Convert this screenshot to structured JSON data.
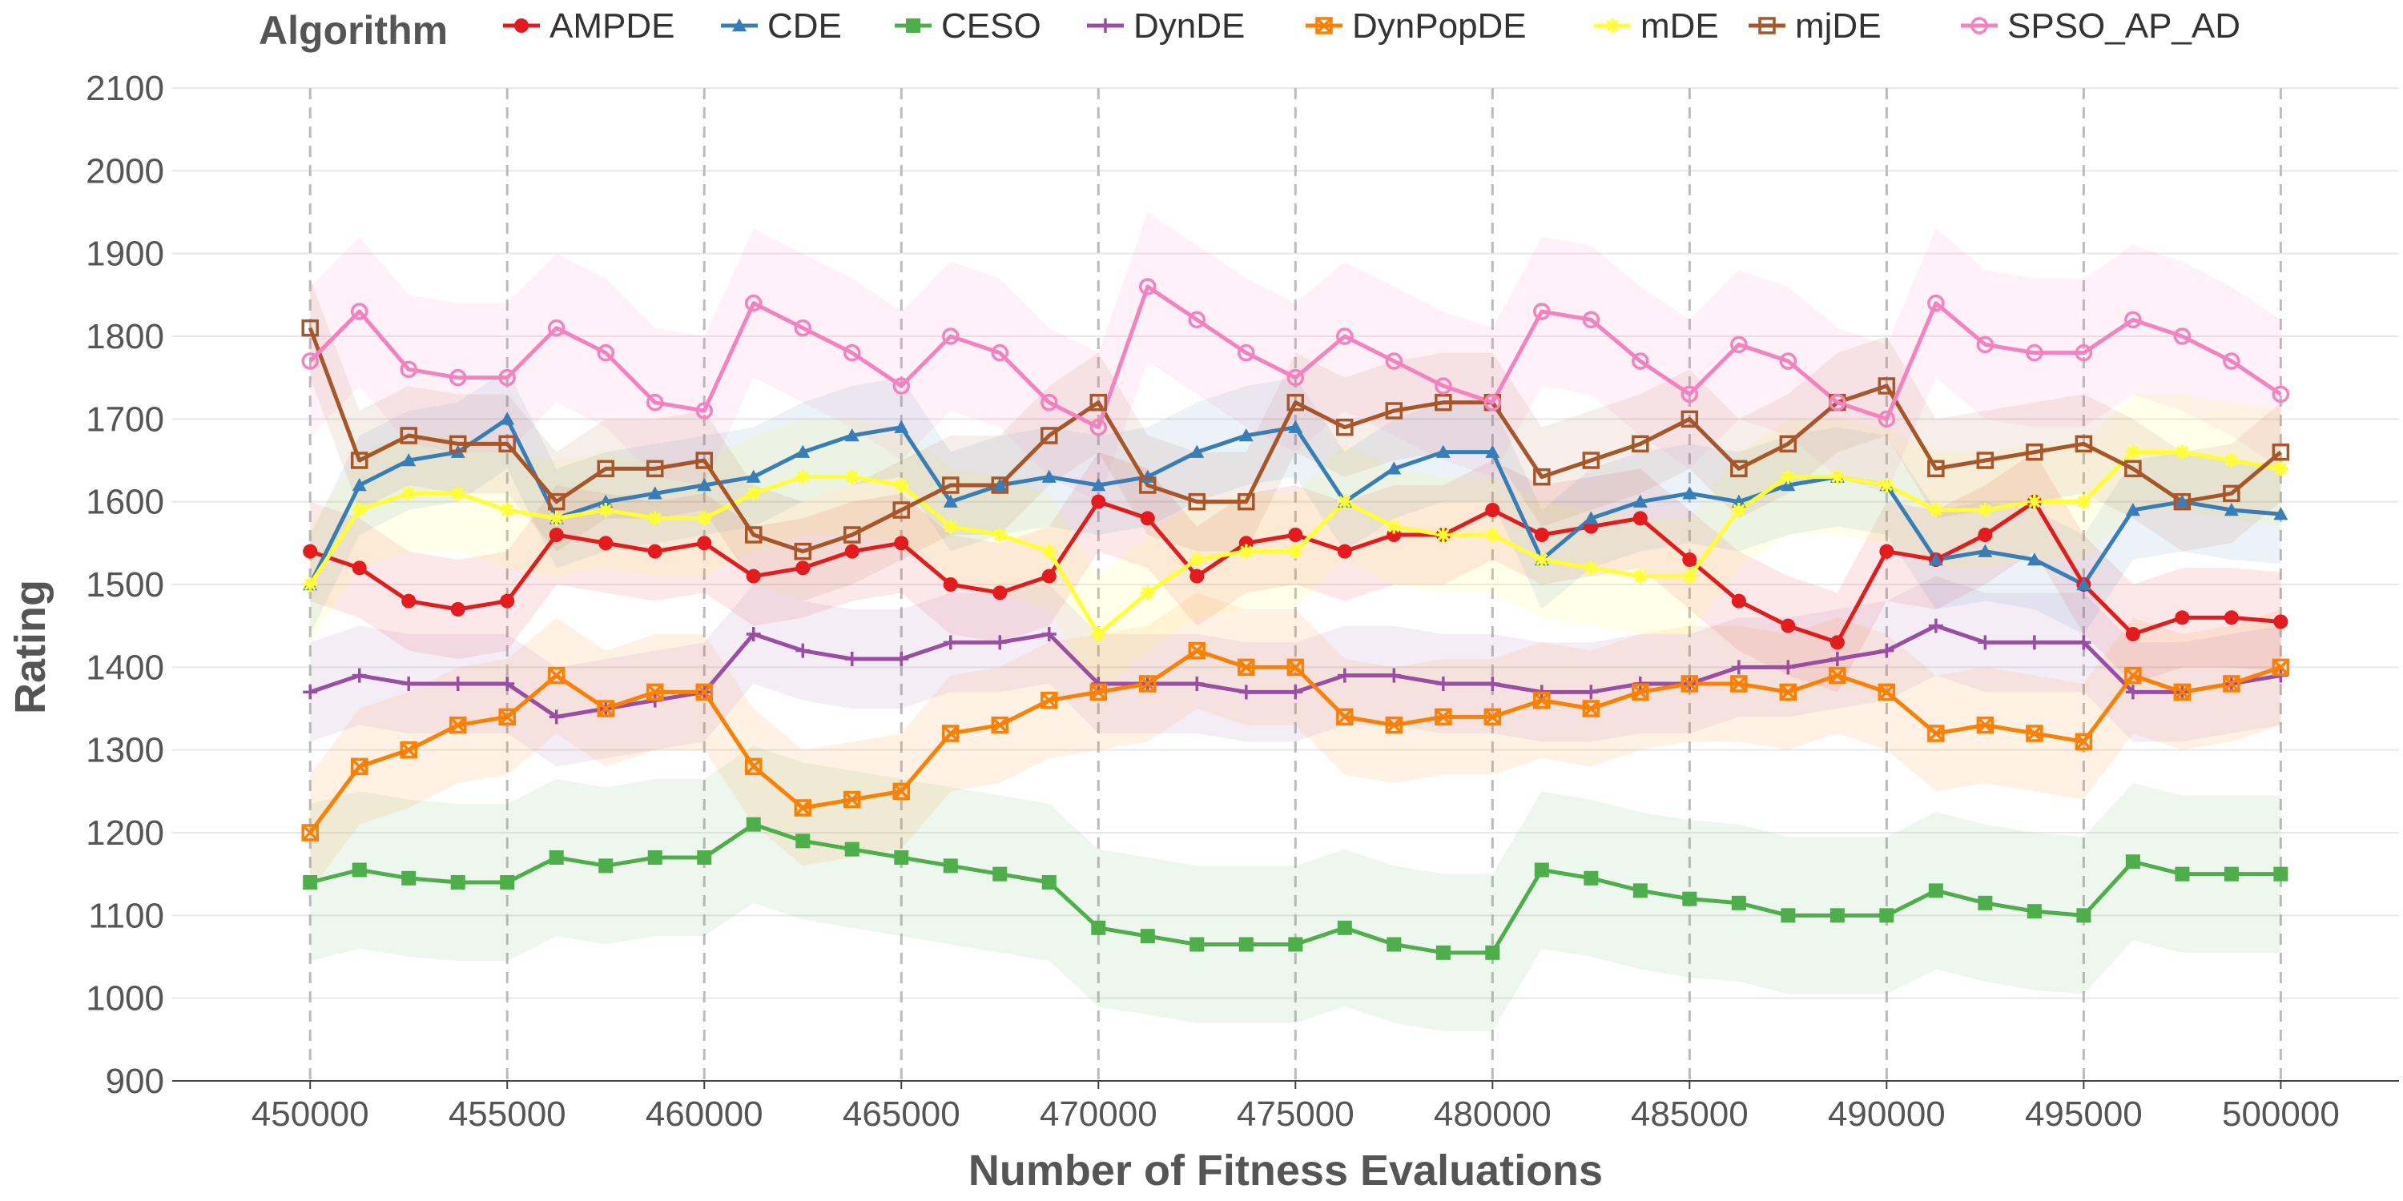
{
  "chart_data": {
    "type": "line",
    "title": "",
    "xlabel": "Number of Fitness Evaluations",
    "ylabel": "Rating",
    "xlim": [
      446500,
      503000
    ],
    "ylim": [
      900,
      2100
    ],
    "x_ticks": [
      450000,
      455000,
      460000,
      465000,
      470000,
      475000,
      480000,
      485000,
      490000,
      495000,
      500000
    ],
    "y_ticks": [
      900,
      1000,
      1100,
      1200,
      1300,
      1400,
      1500,
      1600,
      1700,
      1800,
      1900,
      2000,
      2100
    ],
    "grid": true,
    "change_points": [
      450000,
      455000,
      460000,
      465000,
      470000,
      475000,
      480000,
      485000,
      490000,
      495000,
      500000
    ],
    "legend": {
      "title": "Algorithm",
      "position": "top"
    },
    "x": [
      450000,
      451250,
      452500,
      453750,
      455000,
      456250,
      457500,
      458750,
      460000,
      461250,
      462500,
      463750,
      465000,
      466250,
      467500,
      468750,
      470000,
      471250,
      472500,
      473750,
      475000,
      476250,
      477500,
      478750,
      480000,
      481250,
      482500,
      483750,
      485000,
      486250,
      487500,
      488750,
      490000,
      491250,
      492500,
      493750,
      495000,
      496250,
      497500,
      498750,
      500000
    ],
    "series": [
      {
        "name": "AMPDE",
        "color": "#e41a1c",
        "marker": "circle",
        "band": 60,
        "values": [
          1540,
          1520,
          1480,
          1470,
          1480,
          1560,
          1550,
          1540,
          1550,
          1510,
          1520,
          1540,
          1550,
          1500,
          1490,
          1510,
          1600,
          1580,
          1510,
          1550,
          1560,
          1540,
          1560,
          1560,
          1590,
          1560,
          1570,
          1580,
          1530,
          1480,
          1450,
          1430,
          1540,
          1530,
          1560,
          1600,
          1500,
          1440,
          1460,
          1460,
          1455
        ]
      },
      {
        "name": "CDE",
        "color": "#377eb8",
        "marker": "triangle",
        "band": 60,
        "values": [
          1500,
          1620,
          1650,
          1660,
          1700,
          1580,
          1600,
          1610,
          1620,
          1630,
          1660,
          1680,
          1690,
          1600,
          1620,
          1630,
          1620,
          1630,
          1660,
          1680,
          1690,
          1600,
          1640,
          1660,
          1660,
          1530,
          1580,
          1600,
          1610,
          1600,
          1620,
          1630,
          1620,
          1530,
          1540,
          1530,
          1500,
          1590,
          1600,
          1590,
          1585
        ]
      },
      {
        "name": "CESO",
        "color": "#4daf4a",
        "marker": "square",
        "band": 95,
        "values": [
          1140,
          1155,
          1145,
          1140,
          1140,
          1170,
          1160,
          1170,
          1170,
          1210,
          1190,
          1180,
          1170,
          1160,
          1150,
          1140,
          1085,
          1075,
          1065,
          1065,
          1065,
          1085,
          1065,
          1055,
          1055,
          1155,
          1145,
          1130,
          1120,
          1115,
          1100,
          1100,
          1100,
          1130,
          1115,
          1105,
          1100,
          1165,
          1150,
          1150,
          1150
        ]
      },
      {
        "name": "DynDE",
        "color": "#984ea3",
        "marker": "plus",
        "band": 60,
        "values": [
          1370,
          1390,
          1380,
          1380,
          1380,
          1340,
          1350,
          1360,
          1370,
          1440,
          1420,
          1410,
          1410,
          1430,
          1430,
          1440,
          1380,
          1380,
          1380,
          1370,
          1370,
          1390,
          1390,
          1380,
          1380,
          1370,
          1370,
          1380,
          1380,
          1400,
          1400,
          1410,
          1420,
          1450,
          1430,
          1430,
          1430,
          1370,
          1370,
          1380,
          1390
        ]
      },
      {
        "name": "DynPopDE",
        "color": "#ff7f00",
        "marker": "square-x",
        "band": 70,
        "values": [
          1200,
          1280,
          1300,
          1330,
          1340,
          1390,
          1350,
          1370,
          1370,
          1280,
          1230,
          1240,
          1250,
          1320,
          1330,
          1360,
          1370,
          1380,
          1420,
          1400,
          1400,
          1340,
          1330,
          1340,
          1340,
          1360,
          1350,
          1370,
          1380,
          1380,
          1370,
          1390,
          1370,
          1320,
          1330,
          1320,
          1310,
          1390,
          1370,
          1380,
          1400
        ]
      },
      {
        "name": "mDE",
        "color": "#ffff33",
        "marker": "asterisk",
        "band": 70,
        "values": [
          1500,
          1590,
          1610,
          1610,
          1590,
          1580,
          1590,
          1580,
          1580,
          1610,
          1630,
          1630,
          1620,
          1570,
          1560,
          1540,
          1440,
          1490,
          1530,
          1540,
          1540,
          1600,
          1570,
          1560,
          1560,
          1530,
          1520,
          1510,
          1510,
          1590,
          1630,
          1630,
          1620,
          1590,
          1590,
          1600,
          1600,
          1660,
          1660,
          1650,
          1640
        ]
      },
      {
        "name": "mjDE",
        "color": "#a65628",
        "marker": "square-open",
        "band": 60,
        "values": [
          1810,
          1650,
          1680,
          1670,
          1670,
          1600,
          1640,
          1640,
          1650,
          1560,
          1540,
          1560,
          1590,
          1620,
          1620,
          1680,
          1720,
          1620,
          1600,
          1600,
          1720,
          1690,
          1710,
          1720,
          1720,
          1630,
          1650,
          1670,
          1700,
          1640,
          1670,
          1720,
          1740,
          1640,
          1650,
          1660,
          1670,
          1640,
          1600,
          1610,
          1660
        ]
      },
      {
        "name": "SPSO_AP_AD",
        "color": "#f781bf",
        "marker": "circle-open",
        "band": 90,
        "values": [
          1770,
          1830,
          1760,
          1750,
          1750,
          1810,
          1780,
          1720,
          1710,
          1840,
          1810,
          1780,
          1740,
          1800,
          1780,
          1720,
          1690,
          1860,
          1820,
          1780,
          1750,
          1800,
          1770,
          1740,
          1720,
          1830,
          1820,
          1770,
          1730,
          1790,
          1770,
          1720,
          1700,
          1840,
          1790,
          1780,
          1780,
          1820,
          1800,
          1770,
          1730
        ]
      }
    ]
  }
}
